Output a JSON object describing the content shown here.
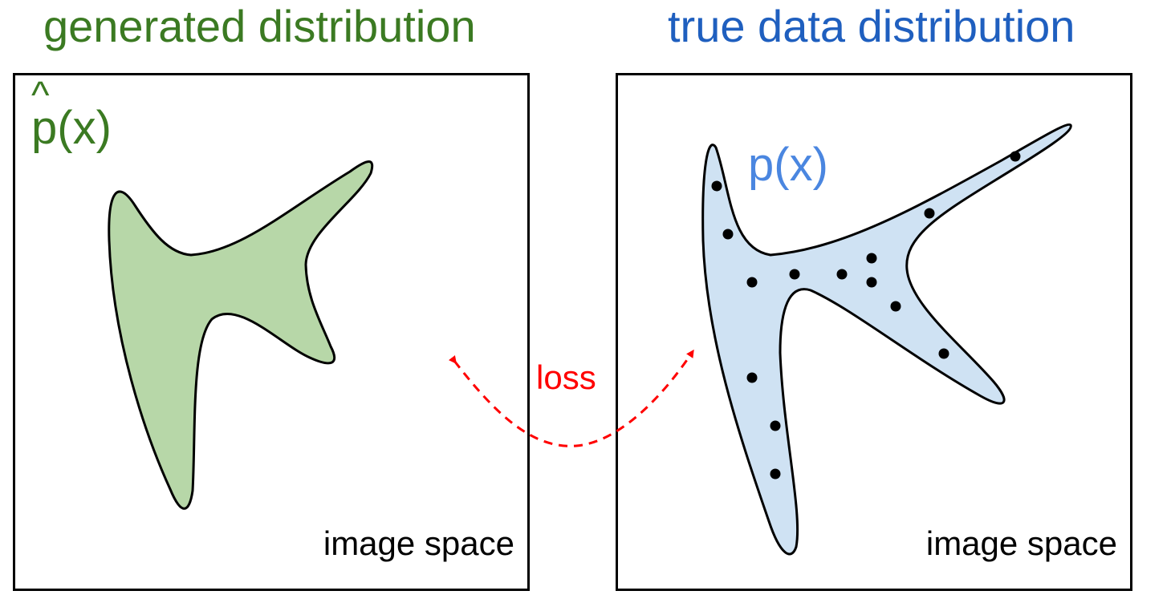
{
  "left": {
    "title": "generated distribution",
    "hat": "^",
    "dist_label": "p(x)",
    "space_label": "image space"
  },
  "right": {
    "title": "true data distribution",
    "dist_label": "p(x)",
    "space_label": "image space"
  },
  "loss_label": "loss",
  "colors": {
    "generated_title": "#3b7a22",
    "true_title": "#1f5fbf",
    "true_dist_label": "#4a86e0",
    "generated_fill": "#b7d7a8",
    "true_fill": "#cfe2f3",
    "loss": "#ff0000",
    "outline": "#000000"
  }
}
